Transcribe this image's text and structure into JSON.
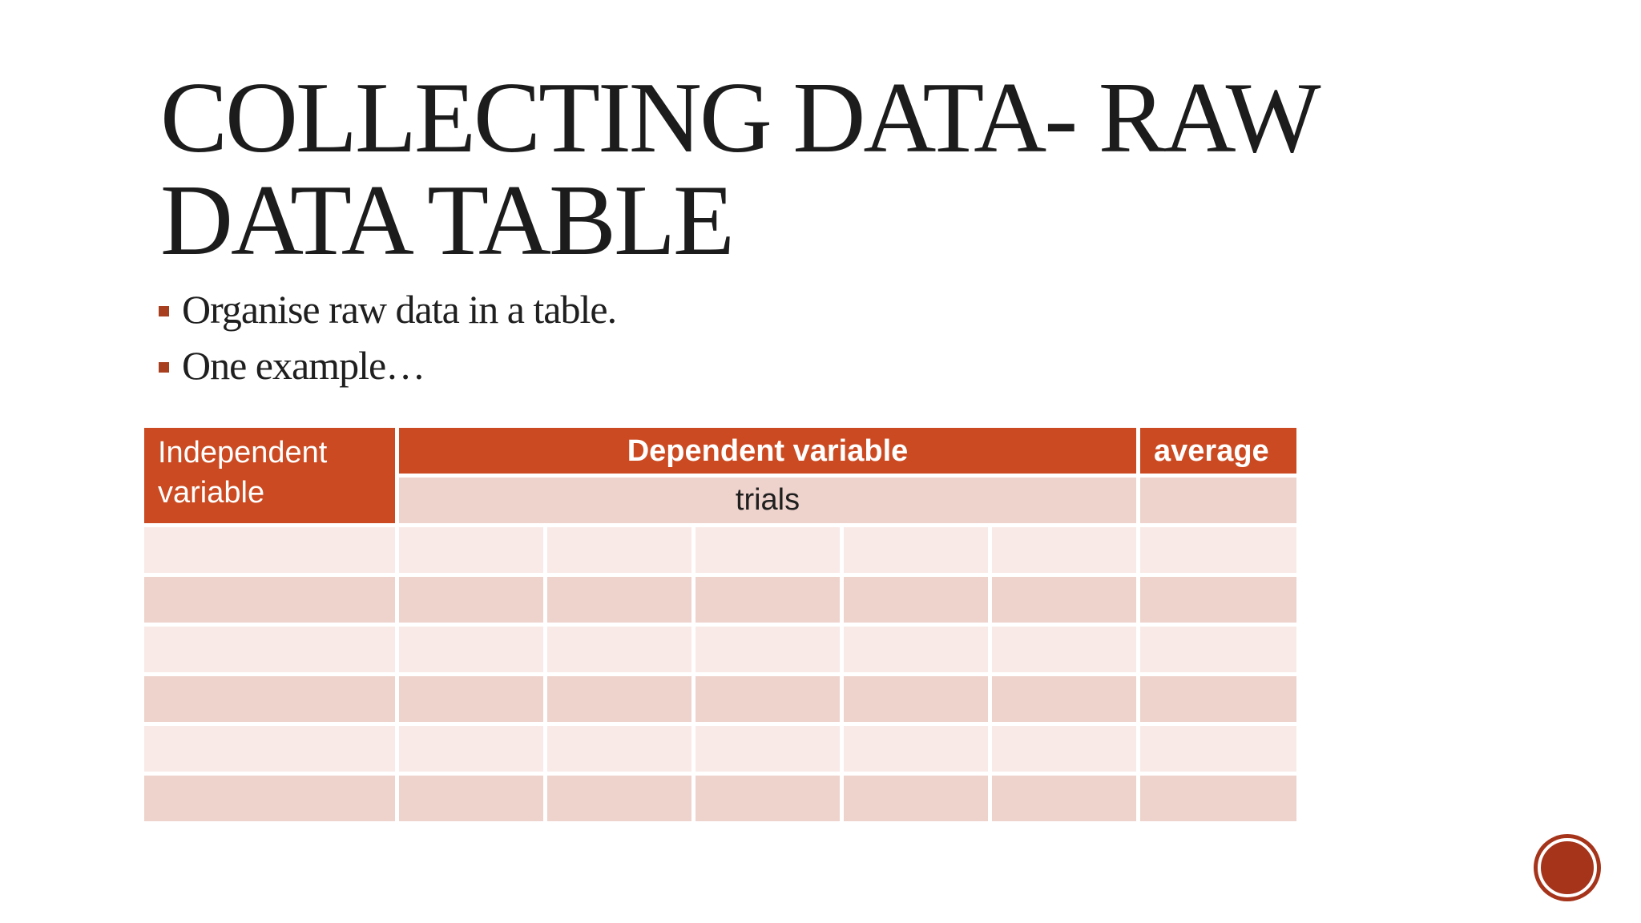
{
  "slide": {
    "title_lines": [
      "COLLECTING DATA- RAW",
      "DATA TABLE"
    ],
    "bullets": [
      "Organise raw data in a table.",
      "One example…"
    ],
    "table": {
      "independent_header": "Independent variable",
      "dependent_header": "Dependent variable",
      "average_header": "average",
      "trials_label": "trials",
      "trial_columns": 5,
      "empty_body_rows": 6
    },
    "colors": {
      "accent_orange": "#CB4A21",
      "row_pink_dark": "#EED2CC",
      "row_pink_light": "#F9EAE7",
      "bullet_marker": "#A8401F",
      "badge_red": "#A5341B",
      "title_text": "#1C1C1C",
      "header_text": "#FFFFFF",
      "body_text": "#1F1F1F"
    }
  }
}
